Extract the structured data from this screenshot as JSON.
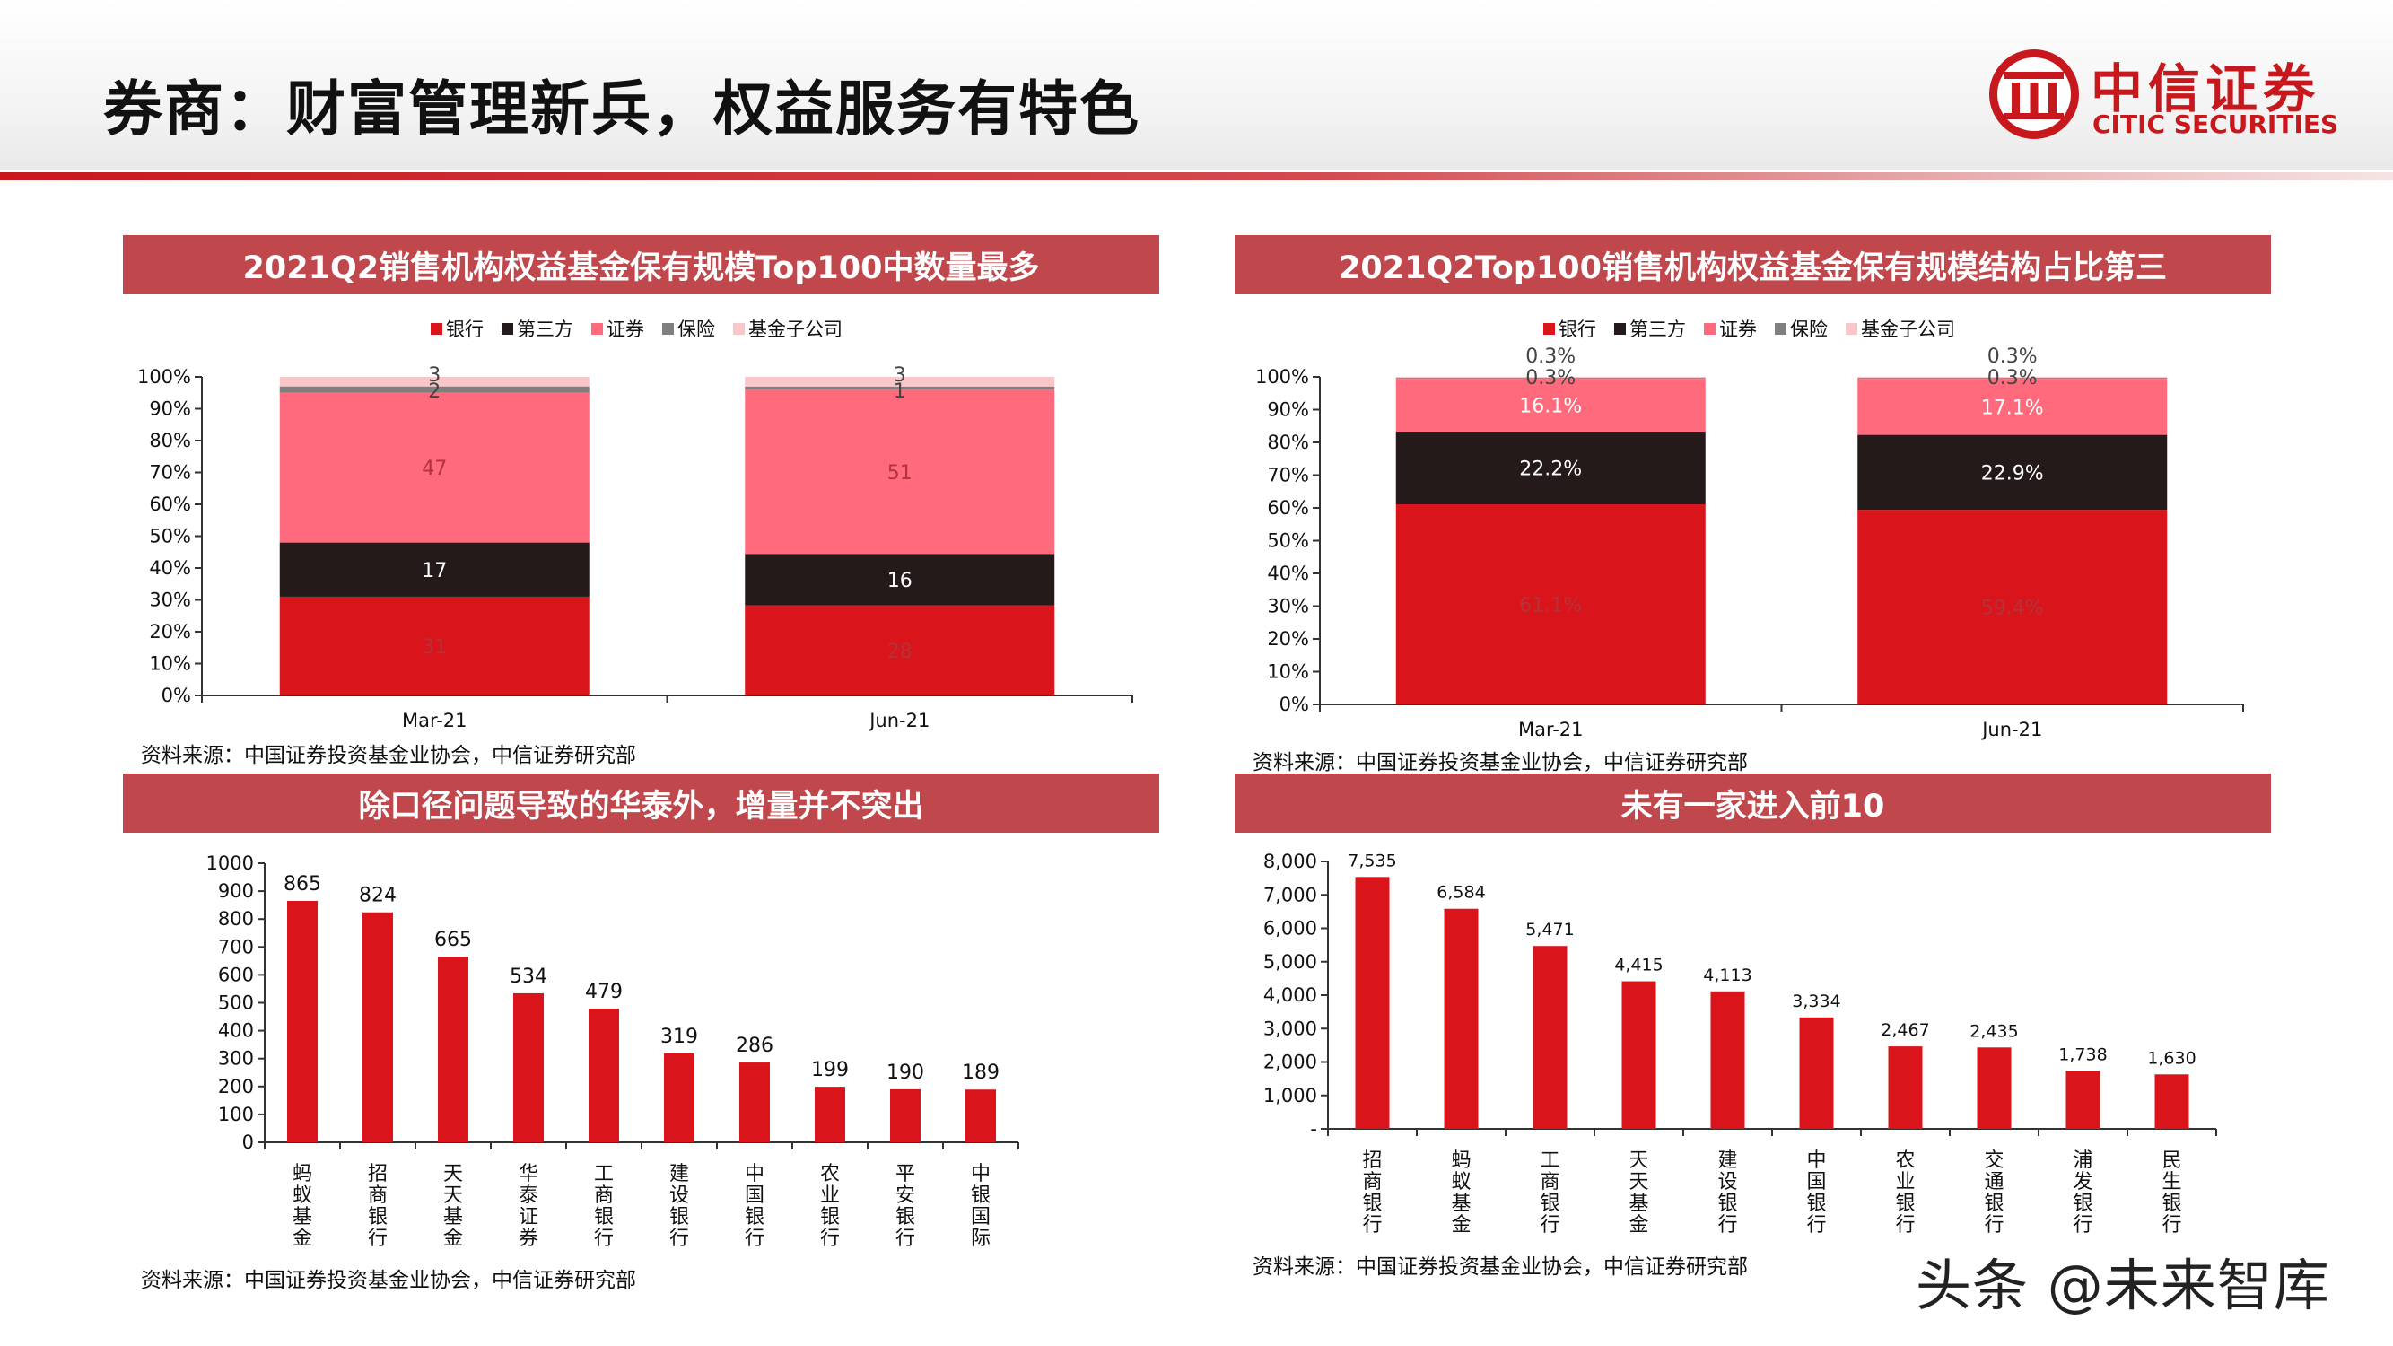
{
  "page": {
    "title": "券商：财富管理新兵，权益服务有特色",
    "logo_cn": "中信证券",
    "logo_en": "CITIC SECURITIES",
    "watermark": "头条 @未来智库"
  },
  "colors": {
    "brand_red": "#c7181e",
    "bank": "#d9141b",
    "third_party": "#231a19",
    "securities": "#ff6a7d",
    "insurance": "#7f7f7f",
    "fund_sub": "#f9c6ca"
  },
  "panels": {
    "p1": {
      "title": "2021Q2销售机构权益基金保有规模Top100中数量最多",
      "source": "资料来源：中国证券投资基金业协会，中信证券研究部"
    },
    "p2": {
      "title": "2021Q2Top100销售机构权益基金保有规模结构占比第三",
      "source": "资料来源：中国证券投资基金业协会，中信证券研究部"
    },
    "p3": {
      "title": "除口径问题导致的华泰外，增量并不突出",
      "source": "资料来源：中国证券投资基金业协会，中信证券研究部"
    },
    "p4": {
      "title": "未有一家进入前10",
      "source": "资料来源：中国证券投资基金业协会，中信证券研究部"
    }
  },
  "chart_data": [
    {
      "type": "bar",
      "stacked": true,
      "normalized": true,
      "categories": [
        "Mar-21",
        "Jun-21"
      ],
      "series": [
        {
          "name": "银行",
          "values": [
            31,
            28
          ],
          "labels": [
            "31",
            "28"
          ]
        },
        {
          "name": "第三方",
          "values": [
            17,
            16
          ],
          "labels": [
            "17",
            "16"
          ]
        },
        {
          "name": "证券",
          "values": [
            47,
            51
          ],
          "labels": [
            "47",
            "51"
          ]
        },
        {
          "name": "保险",
          "values": [
            2,
            1
          ],
          "labels": [
            "2",
            "1"
          ]
        },
        {
          "name": "基金子公司",
          "values": [
            3,
            3
          ],
          "labels": [
            "3",
            "3"
          ]
        }
      ],
      "yticks": [
        "0%",
        "10%",
        "20%",
        "30%",
        "40%",
        "50%",
        "60%",
        "70%",
        "80%",
        "90%",
        "100%"
      ],
      "ylim": [
        0,
        100
      ],
      "legend": "top"
    },
    {
      "type": "bar",
      "stacked": true,
      "categories": [
        "Mar-21",
        "Jun-21"
      ],
      "series": [
        {
          "name": "银行",
          "values": [
            61.1,
            59.4
          ],
          "labels": [
            "61.1%",
            "59.4%"
          ]
        },
        {
          "name": "第三方",
          "values": [
            22.2,
            22.9
          ],
          "labels": [
            "22.2%",
            "22.9%"
          ]
        },
        {
          "name": "证券",
          "values": [
            16.1,
            17.1
          ],
          "labels": [
            "16.1%",
            "17.1%"
          ]
        },
        {
          "name": "保险",
          "values": [
            0.3,
            0.3
          ],
          "labels": [
            "0.3%",
            "0.3%"
          ]
        },
        {
          "name": "基金子公司",
          "values": [
            0.3,
            0.3
          ],
          "labels": [
            "0.3%",
            "0.3%"
          ]
        }
      ],
      "yticks": [
        "0%",
        "10%",
        "20%",
        "30%",
        "40%",
        "50%",
        "60%",
        "70%",
        "80%",
        "90%",
        "100%"
      ],
      "ylim": [
        0,
        100
      ],
      "legend": "top"
    },
    {
      "type": "bar",
      "categories": [
        "蚂蚁基金",
        "招商银行",
        "天天基金",
        "华泰证券",
        "工商银行",
        "建设银行",
        "中国银行",
        "农业银行",
        "平安银行",
        "中银国际"
      ],
      "values": [
        865,
        824,
        665,
        534,
        479,
        319,
        286,
        199,
        190,
        189
      ],
      "labels": [
        "865",
        "824",
        "665",
        "534",
        "479",
        "319",
        "286",
        "199",
        "190",
        "189"
      ],
      "yticks": [
        "0",
        "100",
        "200",
        "300",
        "400",
        "500",
        "600",
        "700",
        "800",
        "900",
        "1000"
      ],
      "ylim": [
        0,
        1000
      ]
    },
    {
      "type": "bar",
      "categories": [
        "招商银行",
        "蚂蚁基金",
        "工商银行",
        "天天基金",
        "建设银行",
        "中国银行",
        "农业银行",
        "交通银行",
        "浦发银行",
        "民生银行"
      ],
      "values": [
        7535,
        6584,
        5471,
        4415,
        4113,
        3334,
        2467,
        2435,
        1738,
        1630
      ],
      "labels": [
        "7,535",
        "6,584",
        "5,471",
        "4,415",
        "4,113",
        "3,334",
        "2,467",
        "2,435",
        "1,738",
        "1,630"
      ],
      "yticks": [
        "-",
        "1,000",
        "2,000",
        "3,000",
        "4,000",
        "5,000",
        "6,000",
        "7,000",
        "8,000"
      ],
      "ylim": [
        0,
        8000
      ]
    }
  ]
}
